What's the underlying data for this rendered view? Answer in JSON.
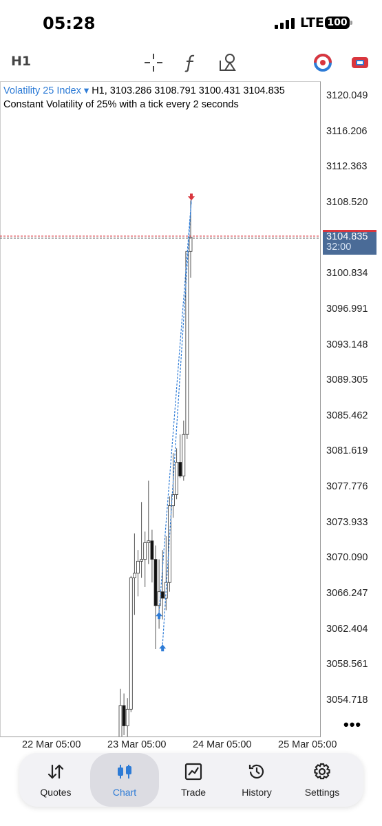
{
  "status": {
    "time": "05:28",
    "network": "LTE",
    "battery": "100"
  },
  "toolbar": {
    "timeframe": "H1",
    "icons": [
      "crosshair-icon",
      "indicator-f-icon",
      "objects-icon",
      "one-click-trading-icon",
      "trade-panel-icon"
    ]
  },
  "chart": {
    "symbol": "Volatility 25 Index",
    "symbol_caret": "▾",
    "ohlc": "H1, 3103.286 3108.791 3100.431 3104.835",
    "description": "Constant Volatility of 25% with a tick every 2 seconds",
    "price_labels": [
      "3120.049",
      "3116.206",
      "3112.363",
      "3108.520",
      "3104.835",
      "3100.834",
      "3096.991",
      "3093.148",
      "3089.305",
      "3085.462",
      "3081.619",
      "3077.776",
      "3073.933",
      "3070.090",
      "3066.247",
      "3062.404",
      "3058.561",
      "3054.718"
    ],
    "current_price": "3104.835",
    "countdown": "32:00",
    "dates": [
      "22 Mar 05:00",
      "23 Mar 05:00",
      "24 Mar 05:00",
      "25 Mar 05:00"
    ],
    "more": "•••",
    "colors": {
      "buy": "#2d7bd6",
      "sell": "#d9363e",
      "price_box": "#4a6b97"
    }
  },
  "chart_data": {
    "type": "candlestick",
    "title": "Volatility 25 Index",
    "ylim": [
      3052.0,
      3122.0
    ],
    "ticks": [
      3120.049,
      3116.206,
      3112.363,
      3108.52,
      3104.835,
      3100.834,
      3096.991,
      3093.148,
      3089.305,
      3085.462,
      3081.619,
      3077.776,
      3073.933,
      3070.09,
      3066.247,
      3062.404,
      3058.561,
      3054.718
    ],
    "candles": [
      {
        "o": 3050.0,
        "h": 3056.0,
        "l": 3050.0,
        "c": 3054.2
      },
      {
        "o": 3054.2,
        "h": 3055.5,
        "l": 3051.0,
        "c": 3052.0
      },
      {
        "o": 3052.0,
        "h": 3055.0,
        "l": 3050.5,
        "c": 3053.8
      },
      {
        "o": 3053.8,
        "h": 3068.2,
        "l": 3053.5,
        "c": 3068.0
      },
      {
        "o": 3068.0,
        "h": 3072.8,
        "l": 3064.0,
        "c": 3068.5
      },
      {
        "o": 3068.5,
        "h": 3071.0,
        "l": 3066.0,
        "c": 3069.8
      },
      {
        "o": 3069.8,
        "h": 3076.2,
        "l": 3068.0,
        "c": 3070.0
      },
      {
        "o": 3070.0,
        "h": 3073.0,
        "l": 3067.0,
        "c": 3071.8
      },
      {
        "o": 3071.8,
        "h": 3078.5,
        "l": 3069.5,
        "c": 3072.0
      },
      {
        "o": 3072.0,
        "h": 3073.2,
        "l": 3067.5,
        "c": 3070.0
      },
      {
        "o": 3070.0,
        "h": 3071.5,
        "l": 3060.3,
        "c": 3065.0
      },
      {
        "o": 3065.0,
        "h": 3070.0,
        "l": 3062.5,
        "c": 3066.5
      },
      {
        "o": 3066.5,
        "h": 3071.0,
        "l": 3063.5,
        "c": 3065.8
      },
      {
        "o": 3065.8,
        "h": 3072.5,
        "l": 3064.5,
        "c": 3067.5
      },
      {
        "o": 3067.5,
        "h": 3076.8,
        "l": 3066.5,
        "c": 3075.8
      },
      {
        "o": 3075.8,
        "h": 3081.5,
        "l": 3074.5,
        "c": 3077.0
      },
      {
        "o": 3077.0,
        "h": 3082.0,
        "l": 3076.5,
        "c": 3080.5
      },
      {
        "o": 3080.5,
        "h": 3083.5,
        "l": 3078.8,
        "c": 3079.0
      },
      {
        "o": 3079.0,
        "h": 3085.0,
        "l": 3078.5,
        "c": 3083.5
      },
      {
        "o": 3083.5,
        "h": 3103.2,
        "l": 3083.0,
        "c": 3103.286
      },
      {
        "o": 3103.286,
        "h": 3108.791,
        "l": 3100.431,
        "c": 3104.835
      }
    ],
    "trades": [
      {
        "type": "buy",
        "candle": 11,
        "price": 3064.3
      },
      {
        "type": "buy",
        "candle": 12,
        "price": 3060.8
      },
      {
        "type": "sell",
        "candle": 20,
        "price": 3108.791
      }
    ]
  },
  "nav": [
    {
      "label": "Quotes",
      "icon": "quotes-icon"
    },
    {
      "label": "Chart",
      "icon": "chart-icon"
    },
    {
      "label": "Trade",
      "icon": "trade-icon"
    },
    {
      "label": "History",
      "icon": "history-icon"
    },
    {
      "label": "Settings",
      "icon": "settings-icon"
    }
  ]
}
